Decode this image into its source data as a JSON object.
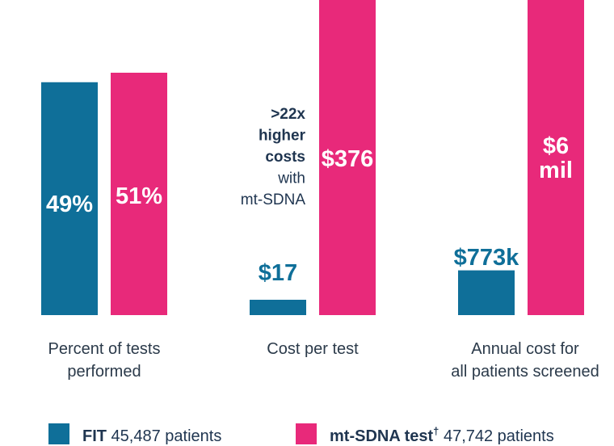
{
  "colors": {
    "fit": "#0f6f99",
    "mtsdna": "#e8297a",
    "dark_text": "#1f3550",
    "light_text": "#ffffff"
  },
  "chart_data": {
    "type": "bar",
    "layout_note": "three independent bar groups, each with its own value scale; no axes shown",
    "groups": [
      {
        "label_lines": [
          "Percent of tests",
          "performed"
        ],
        "bars": [
          {
            "series": "FIT",
            "value": 49,
            "label": "49%"
          },
          {
            "series": "mt-SDNA test",
            "value": 51,
            "label": "51%"
          }
        ]
      },
      {
        "label_lines": [
          "Cost per test"
        ],
        "bars": [
          {
            "series": "FIT",
            "value": 17,
            "label": "$17"
          },
          {
            "series": "mt-SDNA test",
            "value": 376,
            "label": "$376"
          }
        ],
        "annotation": {
          "bold_lines": [
            ">22x",
            "higher",
            "costs"
          ],
          "regular_lines": [
            "with",
            "mt-SDNA"
          ]
        }
      },
      {
        "label_lines": [
          "Annual cost for",
          "all patients screened"
        ],
        "bars": [
          {
            "series": "FIT",
            "value": 773000,
            "label_lines": [
              "$773k"
            ]
          },
          {
            "series": "mt-SDNA test",
            "value": 6000000,
            "label_lines": [
              "$6",
              "mil"
            ]
          }
        ]
      }
    ],
    "series": [
      {
        "name": "FIT",
        "detail": "45,487 patients",
        "color": "#0f6f99"
      },
      {
        "name": "mt-SDNA test",
        "superscript": "†",
        "detail": "47,742 patients",
        "color": "#e8297a"
      }
    ],
    "legend": {
      "position": "bottom"
    }
  }
}
